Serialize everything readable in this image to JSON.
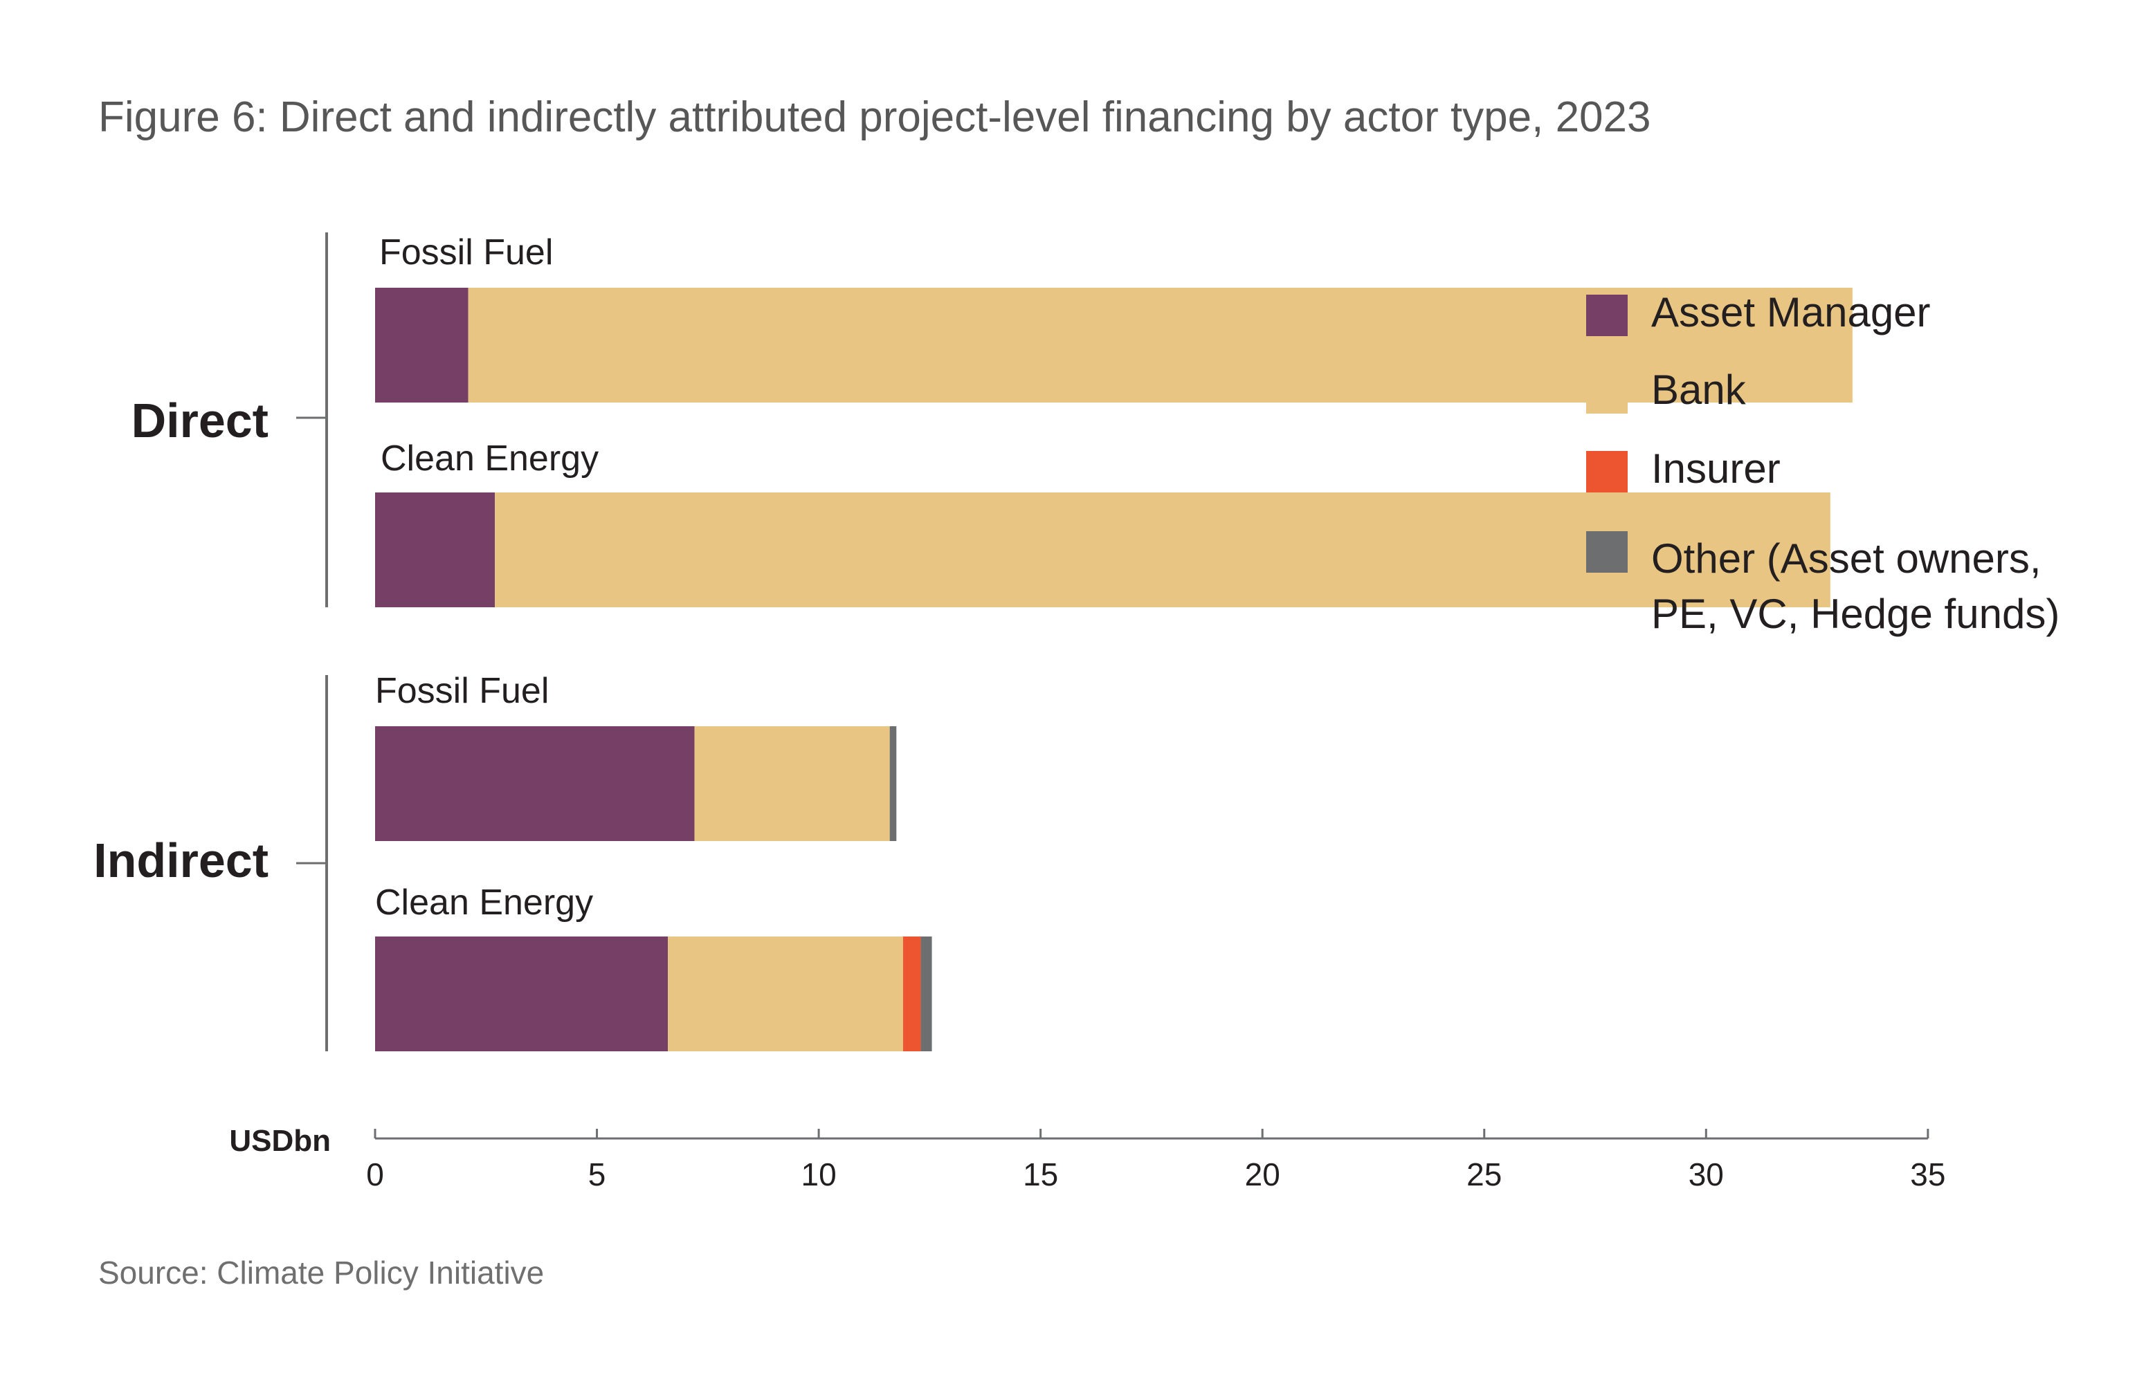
{
  "title": "Figure 6: Direct and indirectly attributed project-level financing by actor type, 2023",
  "source": "Source: Climate Policy Initiative",
  "colors": {
    "asset_manager": "#763f66",
    "bank": "#e8c583",
    "insurer": "#ec5530",
    "other": "#6d6e70",
    "axis": "#6d6e70"
  },
  "chart_data": {
    "type": "bar",
    "orientation": "horizontal",
    "stacked": true,
    "x_unit": "USDbn",
    "xlim": [
      0,
      35
    ],
    "x_ticks": [
      "0",
      "5",
      "10",
      "15",
      "20",
      "25",
      "30",
      "35"
    ],
    "legend_position": "right",
    "groups": [
      {
        "name": "Direct",
        "bars": [
          {
            "label": "Fossil Fuel",
            "values": {
              "asset_manager": 2.1,
              "bank": 31.2,
              "insurer": 0,
              "other": 0
            }
          },
          {
            "label": "Clean Energy",
            "values": {
              "asset_manager": 2.7,
              "bank": 30.1,
              "insurer": 0,
              "other": 0
            }
          }
        ]
      },
      {
        "name": "Indirect",
        "bars": [
          {
            "label": "Fossil Fuel",
            "values": {
              "asset_manager": 7.2,
              "bank": 4.4,
              "insurer": 0,
              "other": 0.15
            }
          },
          {
            "label": "Clean Energy",
            "values": {
              "asset_manager": 6.6,
              "bank": 5.3,
              "insurer": 0.4,
              "other": 0.25
            }
          }
        ]
      }
    ],
    "series": [
      {
        "key": "asset_manager",
        "name": "Asset Manager",
        "name_lines": [
          "Asset Manager"
        ]
      },
      {
        "key": "bank",
        "name": "Bank",
        "name_lines": [
          "Bank"
        ]
      },
      {
        "key": "insurer",
        "name": "Insurer",
        "name_lines": [
          "Insurer"
        ]
      },
      {
        "key": "other",
        "name": "Other (Asset owners, PE, VC, Hedge funds)",
        "name_lines": [
          "Other (Asset owners,",
          "PE, VC, Hedge funds)"
        ]
      }
    ]
  }
}
